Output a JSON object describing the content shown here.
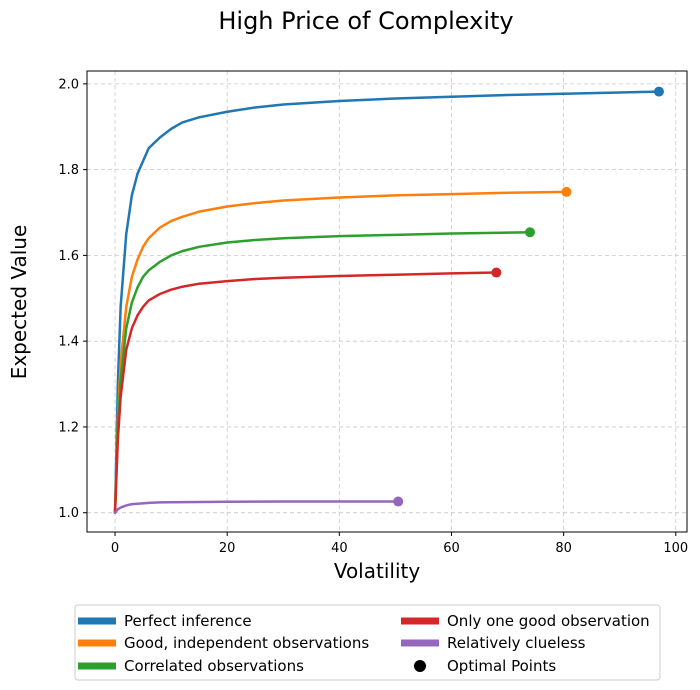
{
  "chart_data": {
    "type": "line",
    "title": "High Price of Complexity",
    "xlabel": "Volatility",
    "ylabel": "Expected Value",
    "xlim": [
      -5,
      102
    ],
    "ylim": [
      0.955,
      2.03
    ],
    "xticks": [
      "0",
      "20",
      "40",
      "60",
      "80",
      "100"
    ],
    "yticks": [
      "1.0",
      "1.2",
      "1.4",
      "1.6",
      "1.8",
      "2.0"
    ],
    "grid": true,
    "legend_position": "bottom-outside",
    "optimal_points_label": "Optimal Points",
    "series": [
      {
        "name": "Perfect inference",
        "color": "#1f77b4",
        "x": [
          0,
          0.5,
          1,
          2,
          3,
          4,
          5,
          6,
          8,
          10,
          12,
          15,
          20,
          25,
          30,
          40,
          50,
          60,
          70,
          80,
          90,
          97
        ],
        "y": [
          1.0,
          1.3,
          1.48,
          1.65,
          1.74,
          1.79,
          1.82,
          1.85,
          1.875,
          1.895,
          1.91,
          1.922,
          1.935,
          1.945,
          1.952,
          1.96,
          1.966,
          1.97,
          1.974,
          1.977,
          1.98,
          1.982
        ],
        "optimal": [
          97,
          1.982
        ]
      },
      {
        "name": "Good, independent observations",
        "color": "#ff7f0e",
        "x": [
          0,
          0.5,
          1,
          2,
          3,
          4,
          5,
          6,
          8,
          10,
          12,
          15,
          20,
          25,
          30,
          40,
          50,
          60,
          70,
          80.5
        ],
        "y": [
          1.0,
          1.22,
          1.35,
          1.48,
          1.55,
          1.59,
          1.62,
          1.64,
          1.665,
          1.68,
          1.69,
          1.702,
          1.714,
          1.722,
          1.728,
          1.735,
          1.74,
          1.743,
          1.746,
          1.748
        ],
        "optimal": [
          80.5,
          1.748
        ]
      },
      {
        "name": "Correlated observations",
        "color": "#2ca02c",
        "x": [
          0,
          0.5,
          1,
          2,
          3,
          4,
          5,
          6,
          8,
          10,
          12,
          15,
          20,
          25,
          30,
          40,
          50,
          60,
          74
        ],
        "y": [
          1.0,
          1.2,
          1.31,
          1.43,
          1.49,
          1.525,
          1.55,
          1.565,
          1.585,
          1.6,
          1.61,
          1.62,
          1.63,
          1.636,
          1.64,
          1.645,
          1.648,
          1.651,
          1.654
        ],
        "optimal": [
          74,
          1.654
        ]
      },
      {
        "name": "Only one good observation",
        "color": "#d62728",
        "x": [
          0,
          0.5,
          1,
          2,
          3,
          4,
          5,
          6,
          8,
          10,
          12,
          15,
          20,
          25,
          30,
          40,
          50,
          60,
          68
        ],
        "y": [
          1.0,
          1.17,
          1.27,
          1.38,
          1.43,
          1.46,
          1.48,
          1.495,
          1.51,
          1.52,
          1.527,
          1.534,
          1.54,
          1.545,
          1.548,
          1.552,
          1.555,
          1.558,
          1.56
        ],
        "optimal": [
          68,
          1.56
        ]
      },
      {
        "name": "Relatively clueless",
        "color": "#9467bd",
        "x": [
          0,
          0.5,
          1,
          2,
          3,
          4,
          6,
          8,
          10,
          15,
          20,
          30,
          40,
          50.5
        ],
        "y": [
          1.0,
          1.008,
          1.012,
          1.017,
          1.02,
          1.021,
          1.023,
          1.024,
          1.0245,
          1.025,
          1.0255,
          1.026,
          1.026,
          1.026
        ],
        "optimal": [
          50.5,
          1.026
        ]
      }
    ]
  }
}
